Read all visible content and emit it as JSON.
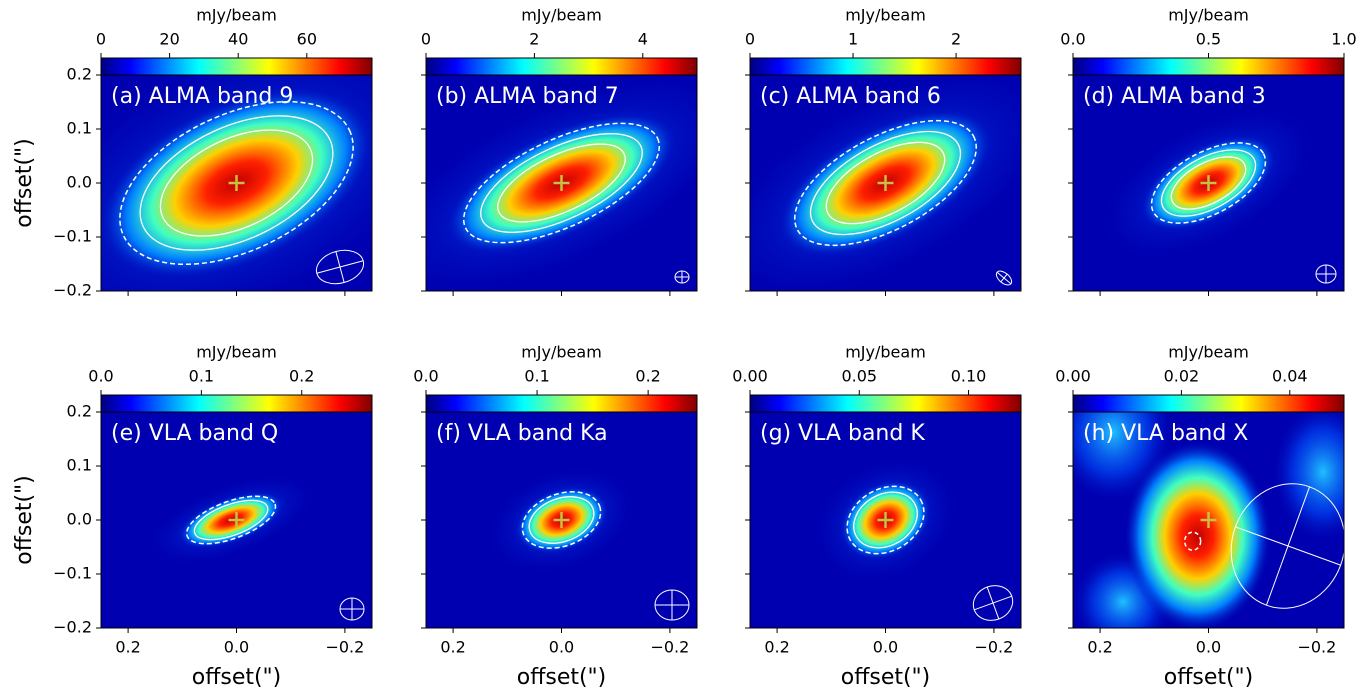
{
  "chart_data": [
    {
      "type": "image",
      "title": "(a) ALMA band 9",
      "colorbar_label": "mJy/beam",
      "clim": [
        0,
        79
      ],
      "cticks": [
        0,
        20,
        40,
        60
      ],
      "xlim": [
        0.25,
        -0.25
      ],
      "ylim": [
        -0.2,
        0.2
      ],
      "xticks": [
        0.2,
        {
          "value": 0,
          "label": "0.0"
        },
        {
          "value": -0.2,
          "label": "−0.2"
        }
      ],
      "yticks": [
        {
          "value": -0.2,
          "label": "−0.2"
        },
        {
          "value": -0.1,
          "label": "−0.1"
        },
        {
          "value": 0,
          "label": "0.0"
        },
        0.1,
        0.2
      ],
      "ylabel": "offset(\")",
      "show_xtick_labels": false,
      "show_ytick_labels": true
    },
    {
      "type": "image",
      "title": "(b) ALMA band 7",
      "colorbar_label": "mJy/beam",
      "clim": [
        0,
        5
      ],
      "cticks": [
        0,
        2,
        4
      ],
      "xlim": [
        0.25,
        -0.25
      ],
      "ylim": [
        -0.2,
        0.2
      ],
      "xticks": [
        0.2,
        {
          "value": 0,
          "label": "0.0"
        },
        {
          "value": -0.2,
          "label": "−0.2"
        }
      ],
      "yticks": [
        {
          "value": -0.2,
          "label": "−0.2"
        },
        {
          "value": -0.1,
          "label": "−0.1"
        },
        {
          "value": 0,
          "label": "0.0"
        },
        0.1,
        0.2
      ],
      "show_xtick_labels": false,
      "show_ytick_labels": false
    },
    {
      "type": "image",
      "title": "(c) ALMA band 6",
      "colorbar_label": "mJy/beam",
      "clim": [
        0,
        2.63
      ],
      "cticks": [
        0,
        1,
        2
      ],
      "xlim": [
        0.25,
        -0.25
      ],
      "ylim": [
        -0.2,
        0.2
      ],
      "xticks": [
        0.2,
        {
          "value": 0,
          "label": "0.0"
        },
        {
          "value": -0.2,
          "label": "−0.2"
        }
      ],
      "yticks": [
        {
          "value": -0.2,
          "label": "−0.2"
        },
        {
          "value": -0.1,
          "label": "−0.1"
        },
        {
          "value": 0,
          "label": "0.0"
        },
        0.1,
        0.2
      ],
      "show_xtick_labels": false,
      "show_ytick_labels": false
    },
    {
      "type": "image",
      "title": "(d) ALMA band 3",
      "colorbar_label": "mJy/beam",
      "clim": [
        0,
        1
      ],
      "cticks": [
        {
          "value": 0,
          "label": "0.0"
        },
        0.5,
        {
          "value": 1,
          "label": "1.0"
        }
      ],
      "xlim": [
        0.25,
        -0.25
      ],
      "ylim": [
        -0.2,
        0.2
      ],
      "xticks": [
        0.2,
        {
          "value": 0,
          "label": "0.0"
        },
        {
          "value": -0.2,
          "label": "−0.2"
        }
      ],
      "yticks": [
        {
          "value": -0.2,
          "label": "−0.2"
        },
        {
          "value": -0.1,
          "label": "−0.1"
        },
        {
          "value": 0,
          "label": "0.0"
        },
        0.1,
        0.2
      ],
      "show_xtick_labels": false,
      "show_ytick_labels": false
    },
    {
      "type": "image",
      "title": "(e) VLA band Q",
      "colorbar_label": "mJy/beam",
      "clim": [
        0,
        0.27
      ],
      "cticks": [
        {
          "value": 0,
          "label": "0.0"
        },
        0.1,
        0.2
      ],
      "xlim": [
        0.25,
        -0.25
      ],
      "ylim": [
        -0.2,
        0.2
      ],
      "xticks": [
        0.2,
        {
          "value": 0,
          "label": "0.0"
        },
        {
          "value": -0.2,
          "label": "−0.2"
        }
      ],
      "yticks": [
        {
          "value": -0.2,
          "label": "−0.2"
        },
        {
          "value": -0.1,
          "label": "−0.1"
        },
        {
          "value": 0,
          "label": "0.0"
        },
        0.1,
        0.2
      ],
      "xlabel": "offset(\")",
      "ylabel": "offset(\")",
      "show_xtick_labels": true,
      "show_ytick_labels": true
    },
    {
      "type": "image",
      "title": "(f) VLA band Ka",
      "colorbar_label": "mJy/beam",
      "clim": [
        0,
        0.244
      ],
      "cticks": [
        {
          "value": 0,
          "label": "0.0"
        },
        0.1,
        0.2
      ],
      "xlim": [
        0.25,
        -0.25
      ],
      "ylim": [
        -0.2,
        0.2
      ],
      "xticks": [
        0.2,
        {
          "value": 0,
          "label": "0.0"
        },
        {
          "value": -0.2,
          "label": "−0.2"
        }
      ],
      "yticks": [
        {
          "value": -0.2,
          "label": "−0.2"
        },
        {
          "value": -0.1,
          "label": "−0.1"
        },
        {
          "value": 0,
          "label": "0.0"
        },
        0.1,
        0.2
      ],
      "xlabel": "offset(\")",
      "show_xtick_labels": true,
      "show_ytick_labels": false
    },
    {
      "type": "image",
      "title": "(g) VLA band K",
      "colorbar_label": "mJy/beam",
      "clim": [
        0,
        0.124
      ],
      "cticks": [
        {
          "value": 0,
          "label": "0.00"
        },
        0.05,
        {
          "value": 0.1,
          "label": "0.10"
        }
      ],
      "xlim": [
        0.25,
        -0.25
      ],
      "ylim": [
        -0.2,
        0.2
      ],
      "xticks": [
        0.2,
        {
          "value": 0,
          "label": "0.0"
        },
        {
          "value": -0.2,
          "label": "−0.2"
        }
      ],
      "yticks": [
        {
          "value": -0.2,
          "label": "−0.2"
        },
        {
          "value": -0.1,
          "label": "−0.1"
        },
        {
          "value": 0,
          "label": "0.0"
        },
        0.1,
        0.2
      ],
      "xlabel": "offset(\")",
      "show_xtick_labels": true,
      "show_ytick_labels": false
    },
    {
      "type": "image",
      "title": "(h) VLA band X",
      "colorbar_label": "mJy/beam",
      "clim": [
        0,
        0.05
      ],
      "cticks": [
        {
          "value": 0,
          "label": "0.00"
        },
        0.02,
        0.04
      ],
      "xlim": [
        0.25,
        -0.25
      ],
      "ylim": [
        -0.2,
        0.2
      ],
      "xticks": [
        0.2,
        {
          "value": 0,
          "label": "0.0"
        },
        {
          "value": -0.2,
          "label": "−0.2"
        }
      ],
      "yticks": [
        {
          "value": -0.2,
          "label": "−0.2"
        },
        {
          "value": -0.1,
          "label": "−0.1"
        },
        {
          "value": 0,
          "label": "0.0"
        },
        0.1,
        0.2
      ],
      "xlabel": "offset(\")",
      "show_xtick_labels": true,
      "show_ytick_labels": false
    }
  ]
}
